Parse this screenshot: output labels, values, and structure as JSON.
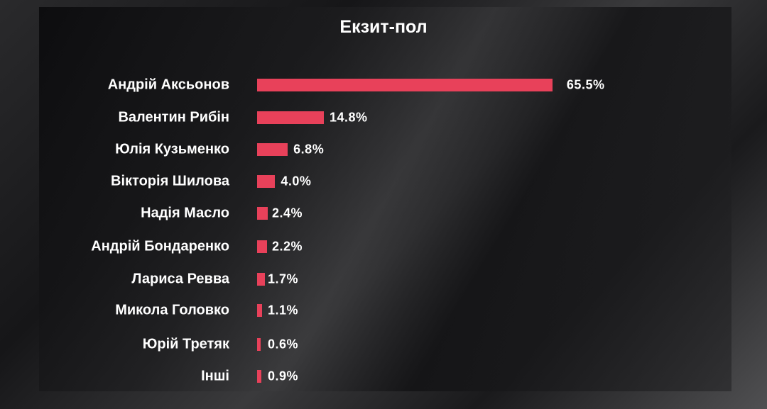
{
  "chart_data": {
    "type": "bar",
    "orientation": "horizontal",
    "title": "Екзит-пол",
    "categories": [
      "Андрій Аксьонов",
      "Валентин  Рибін",
      "Юлія Кузьменко",
      "Вікторія Шилова",
      "Надія Масло",
      "Андрій Бондаренко",
      "Лариса Ревва",
      "Микола Головко",
      "Юрій Третяк",
      "Інші"
    ],
    "values": [
      65.5,
      14.8,
      6.8,
      4.0,
      2.4,
      2.2,
      1.7,
      1.1,
      0.6,
      0.9
    ],
    "labels": [
      "65.5%",
      "14.8%",
      "6.8%",
      "4.0%",
      "2.4%",
      "2.2%",
      "1.7%",
      "1.1%",
      "0.6%",
      "0.9%"
    ],
    "bar_color": "#e8415a",
    "grid": false
  }
}
